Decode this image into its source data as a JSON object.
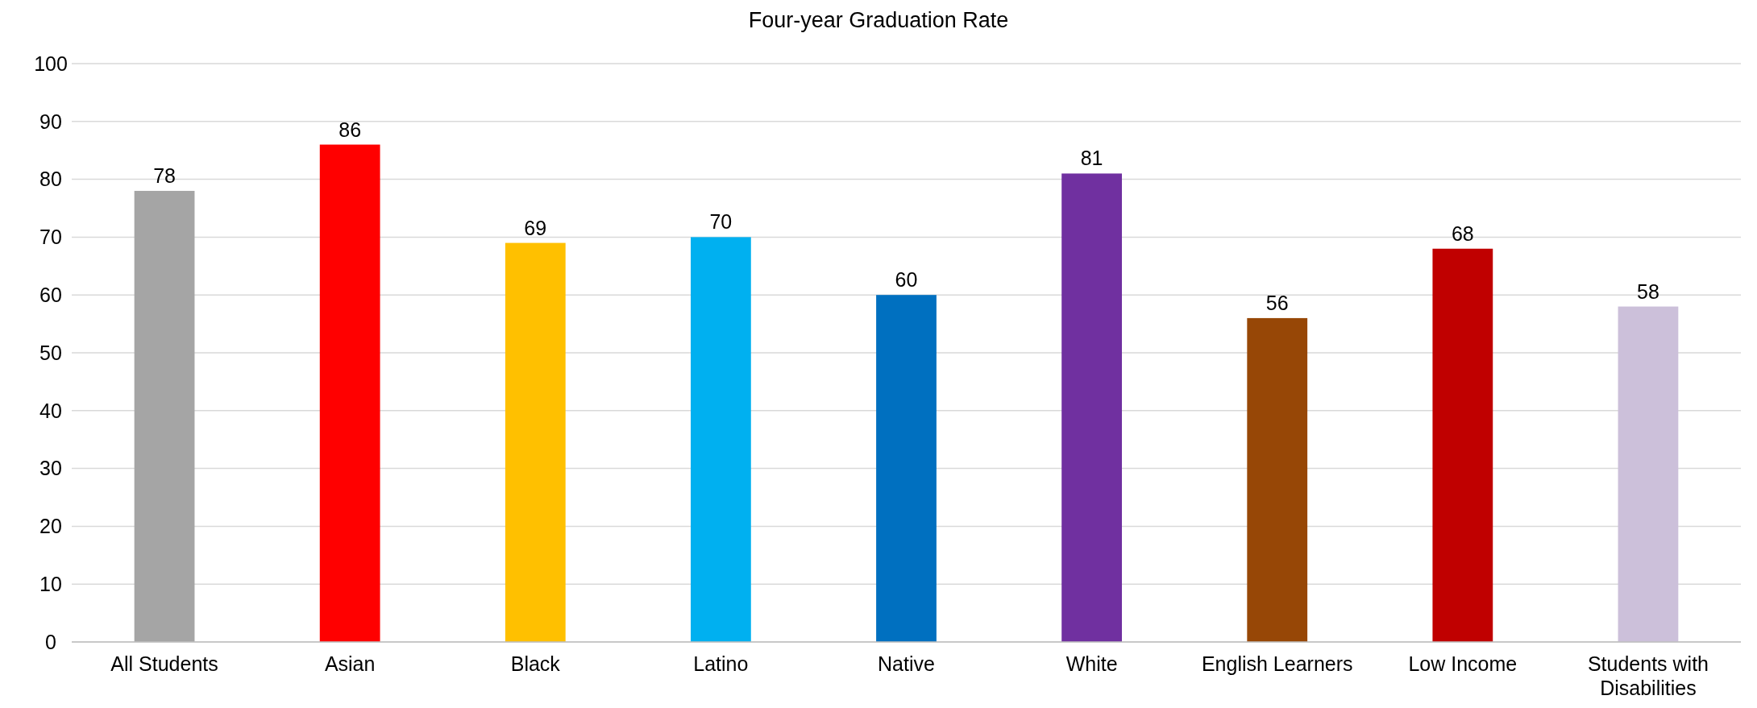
{
  "chart_data": {
    "type": "bar",
    "title": "Four-year Graduation Rate",
    "categories": [
      "All Students",
      "Asian",
      "Black",
      "Latino",
      "Native",
      "White",
      "English Learners",
      "Low Income",
      "Students with Disabilities"
    ],
    "values": [
      78,
      86,
      69,
      70,
      60,
      81,
      56,
      68,
      58
    ],
    "colors": [
      "#a5a5a5",
      "#ff0000",
      "#ffc000",
      "#00b0f0",
      "#0070c0",
      "#7030a0",
      "#974706",
      "#c00000",
      "#ccc0da"
    ],
    "ylim": [
      0,
      100
    ],
    "yticks": [
      0,
      10,
      20,
      30,
      40,
      50,
      60,
      70,
      80,
      90,
      100
    ],
    "grid": "y",
    "data_labels": true
  }
}
